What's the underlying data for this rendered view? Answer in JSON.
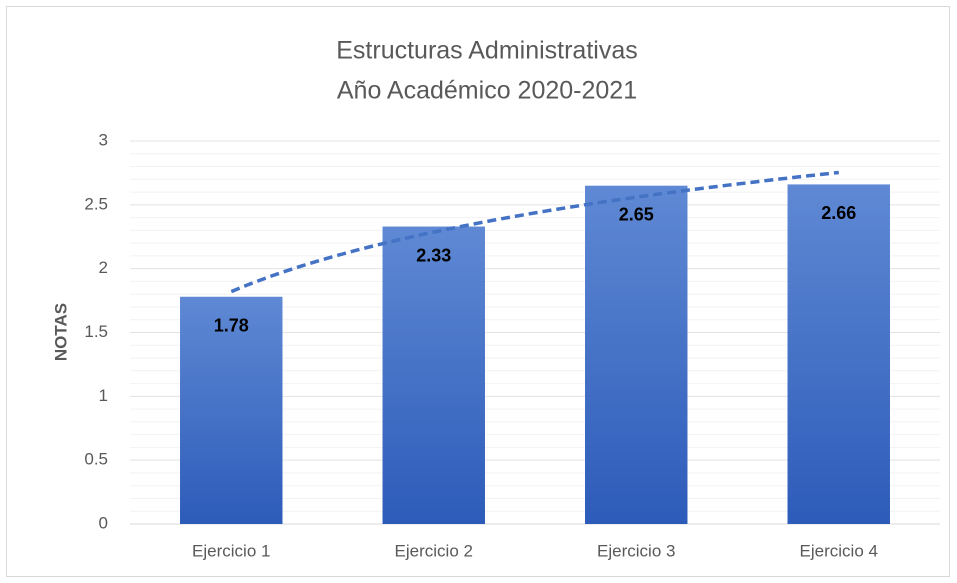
{
  "chart_data": {
    "type": "bar",
    "title": "Estructuras Administrativas",
    "subtitle": "Año Académico 2020-2021",
    "y_label": "NOTAS",
    "categories": [
      "Ejercicio 1",
      "Ejercicio 2",
      "Ejercicio 3",
      "Ejercicio 4"
    ],
    "values": [
      1.78,
      2.33,
      2.65,
      2.66
    ],
    "color": "#4472c4",
    "ylim": [
      0,
      3
    ],
    "yticks": [
      0,
      0.5,
      1,
      1.5,
      2,
      2.5,
      3
    ],
    "grid": true,
    "minor_grid": true,
    "trendline": "logarithmic",
    "trendline_color": "#4472c4",
    "data_labels": true
  }
}
